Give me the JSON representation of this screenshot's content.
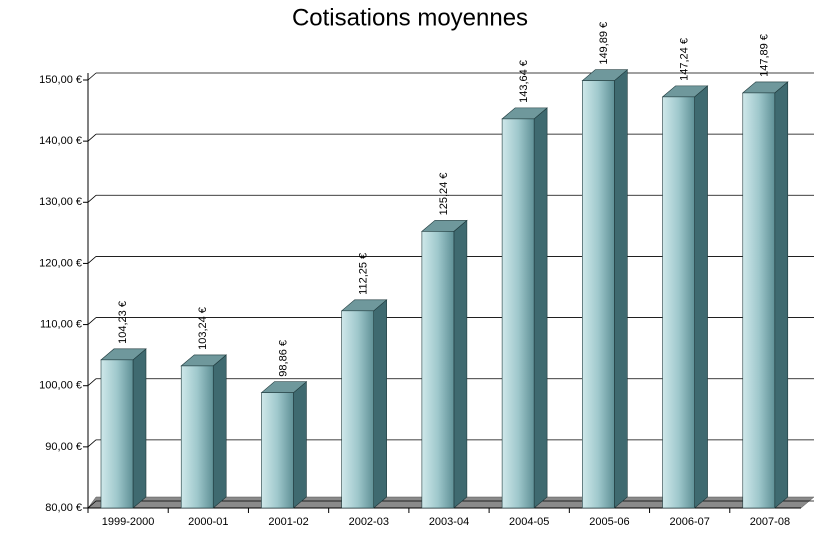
{
  "chart_data": {
    "type": "bar",
    "title": "Cotisations moyennes",
    "categories": [
      "1999-2000",
      "2000-01",
      "2001-02",
      "2002-03",
      "2003-04",
      "2004-05",
      "2005-06",
      "2006-07",
      "2007-08"
    ],
    "values": [
      104.23,
      103.24,
      98.86,
      112.25,
      125.24,
      143.64,
      149.89,
      147.24,
      147.89
    ],
    "value_labels": [
      "104,23 €",
      "103,24 €",
      "98,86 €",
      "112,25 €",
      "125,24 €",
      "143,64 €",
      "149,89 €",
      "147,24 €",
      "147,89 €"
    ],
    "color": "#8fbcc0",
    "ylim": [
      80,
      150
    ],
    "yticks": [
      {
        "value": 80,
        "label": "80,00 €"
      },
      {
        "value": 90,
        "label": "90,00 €"
      },
      {
        "value": 100,
        "label": "100,00 €"
      },
      {
        "value": 110,
        "label": "110,00 €"
      },
      {
        "value": 120,
        "label": "120,00 €"
      },
      {
        "value": 130,
        "label": "130,00 €"
      },
      {
        "value": 140,
        "label": "140,00 €"
      },
      {
        "value": 150,
        "label": "150,00 €"
      }
    ],
    "grid": true
  }
}
